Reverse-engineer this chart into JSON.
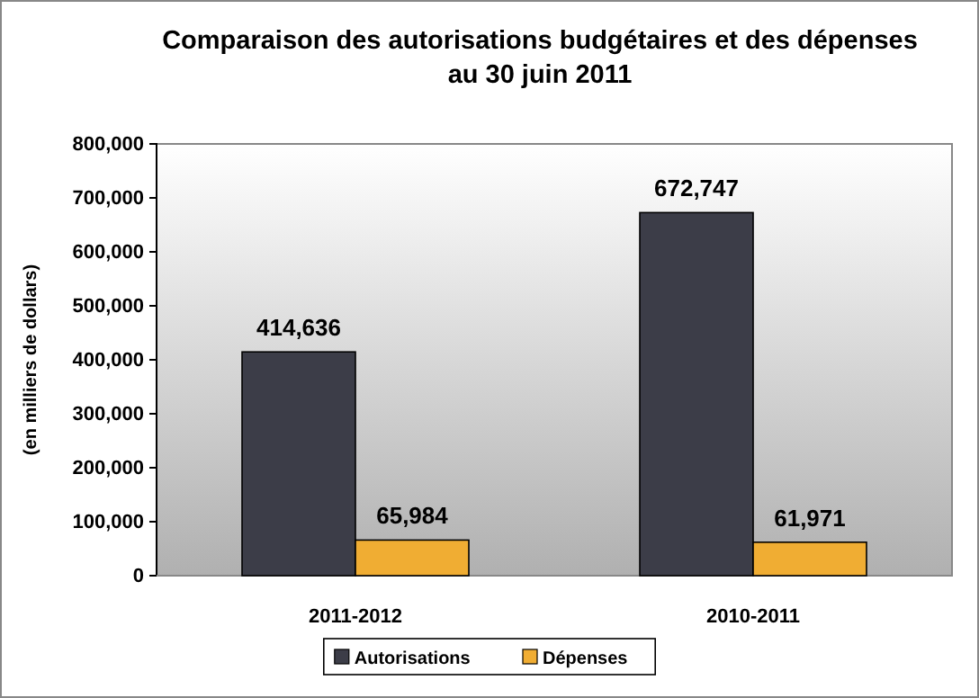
{
  "chart_data": {
    "type": "bar",
    "title": "Comparaison des autorisations budgétaires et des dépenses au 30 juin 2011",
    "ylabel": "(en milliers de dollars)",
    "categories": [
      "2011-2012",
      "2010-2011"
    ],
    "series": [
      {
        "name": "Autorisations",
        "color": "#3c3d48",
        "values": [
          414636,
          672747
        ],
        "value_labels": [
          "414,636",
          "672,747"
        ]
      },
      {
        "name": "Dépenses",
        "color": "#f0ad33",
        "values": [
          65984,
          61971
        ],
        "value_labels": [
          "65,984",
          "61,971"
        ]
      }
    ],
    "ylim": [
      0,
      800000
    ],
    "yticks": [
      {
        "value": 0,
        "label": "0"
      },
      {
        "value": 100000,
        "label": "100,000"
      },
      {
        "value": 200000,
        "label": "200,000"
      },
      {
        "value": 300000,
        "label": "300,000"
      },
      {
        "value": 400000,
        "label": "400,000"
      },
      {
        "value": 500000,
        "label": "500,000"
      },
      {
        "value": 600000,
        "label": "600,000"
      },
      {
        "value": 700000,
        "label": "700,000"
      },
      {
        "value": 800000,
        "label": "800,000"
      }
    ],
    "grid": false,
    "legend": "bottom"
  }
}
